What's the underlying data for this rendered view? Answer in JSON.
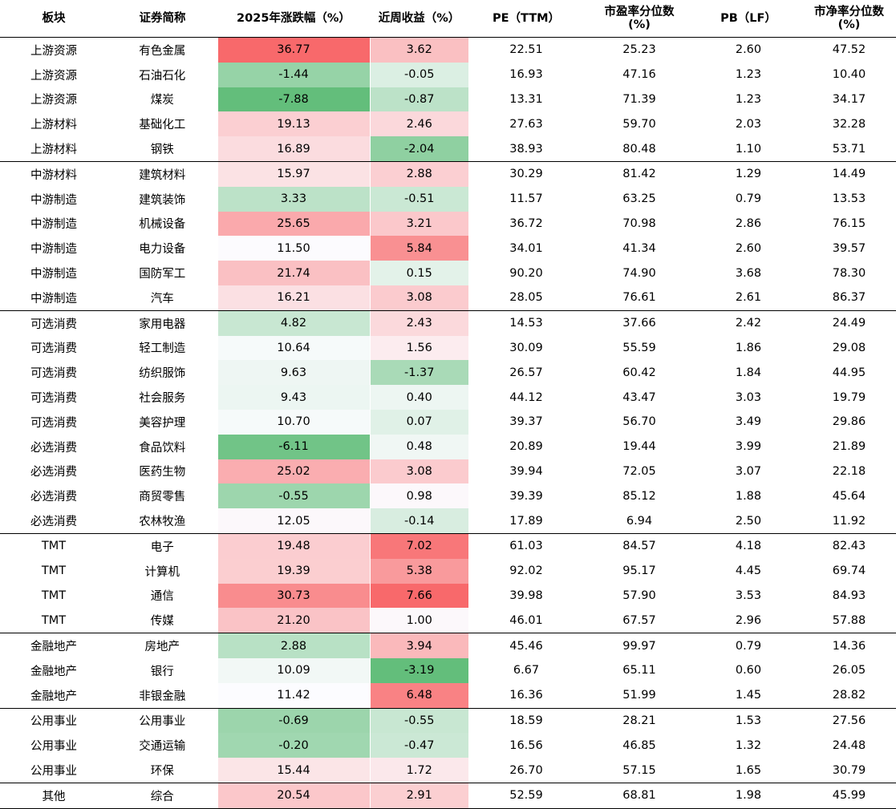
{
  "columns": [
    "板块",
    "证券简称",
    "2025年涨跌幅（%）",
    "近周收益（%）",
    "PE（TTM）",
    "市盈率分位数(%)",
    "PB（LF）",
    "市净率分位数(%)"
  ],
  "rows": [
    [
      "上游资源",
      "有色金属",
      "36.77",
      "3.62",
      "22.51",
      "25.23",
      "2.60",
      "47.52"
    ],
    [
      "上游资源",
      "石油石化",
      "-1.44",
      "-0.05",
      "16.93",
      "47.16",
      "1.23",
      "10.40"
    ],
    [
      "上游资源",
      "煤炭",
      "-7.88",
      "-0.87",
      "13.31",
      "71.39",
      "1.23",
      "34.17"
    ],
    [
      "上游材料",
      "基础化工",
      "19.13",
      "2.46",
      "27.63",
      "59.70",
      "2.03",
      "32.28"
    ],
    [
      "上游材料",
      "钢铁",
      "16.89",
      "-2.04",
      "38.93",
      "80.48",
      "1.10",
      "53.71"
    ],
    [
      "中游材料",
      "建筑材料",
      "15.97",
      "2.88",
      "30.29",
      "81.42",
      "1.29",
      "14.49"
    ],
    [
      "中游制造",
      "建筑装饰",
      "3.33",
      "-0.51",
      "11.57",
      "63.25",
      "0.79",
      "13.53"
    ],
    [
      "中游制造",
      "机械设备",
      "25.65",
      "3.21",
      "36.72",
      "70.98",
      "2.86",
      "76.15"
    ],
    [
      "中游制造",
      "电力设备",
      "11.50",
      "5.84",
      "34.01",
      "41.34",
      "2.60",
      "39.57"
    ],
    [
      "中游制造",
      "国防军工",
      "21.74",
      "0.15",
      "90.20",
      "74.90",
      "3.68",
      "78.30"
    ],
    [
      "中游制造",
      "汽车",
      "16.21",
      "3.08",
      "28.05",
      "76.61",
      "2.61",
      "86.37"
    ],
    [
      "可选消费",
      "家用电器",
      "4.82",
      "2.43",
      "14.53",
      "37.66",
      "2.42",
      "24.49"
    ],
    [
      "可选消费",
      "轻工制造",
      "10.64",
      "1.56",
      "30.09",
      "55.59",
      "1.86",
      "29.08"
    ],
    [
      "可选消费",
      "纺织服饰",
      "9.63",
      "-1.37",
      "26.57",
      "60.42",
      "1.84",
      "44.95"
    ],
    [
      "可选消费",
      "社会服务",
      "9.43",
      "0.40",
      "44.12",
      "43.47",
      "3.03",
      "19.79"
    ],
    [
      "可选消费",
      "美容护理",
      "10.70",
      "0.07",
      "39.37",
      "56.70",
      "3.49",
      "29.86"
    ],
    [
      "必选消费",
      "食品饮料",
      "-6.11",
      "0.48",
      "20.89",
      "19.44",
      "3.99",
      "21.89"
    ],
    [
      "必选消费",
      "医药生物",
      "25.02",
      "3.08",
      "39.94",
      "72.05",
      "3.07",
      "22.18"
    ],
    [
      "必选消费",
      "商贸零售",
      "-0.55",
      "0.98",
      "39.39",
      "85.12",
      "1.88",
      "45.64"
    ],
    [
      "必选消费",
      "农林牧渔",
      "12.05",
      "-0.14",
      "17.89",
      "6.94",
      "2.50",
      "11.92"
    ],
    [
      "TMT",
      "电子",
      "19.48",
      "7.02",
      "61.03",
      "84.57",
      "4.18",
      "82.43"
    ],
    [
      "TMT",
      "计算机",
      "19.39",
      "5.38",
      "92.02",
      "95.17",
      "4.45",
      "69.74"
    ],
    [
      "TMT",
      "通信",
      "30.73",
      "7.66",
      "39.98",
      "57.90",
      "3.53",
      "84.93"
    ],
    [
      "TMT",
      "传媒",
      "21.20",
      "1.00",
      "46.01",
      "67.57",
      "2.96",
      "57.88"
    ],
    [
      "金融地产",
      "房地产",
      "2.88",
      "3.94",
      "45.46",
      "99.97",
      "0.79",
      "14.36"
    ],
    [
      "金融地产",
      "银行",
      "10.09",
      "-3.19",
      "6.67",
      "65.11",
      "0.60",
      "26.05"
    ],
    [
      "金融地产",
      "非银金融",
      "11.42",
      "6.48",
      "16.36",
      "51.99",
      "1.45",
      "28.82"
    ],
    [
      "公用事业",
      "公用事业",
      "-0.69",
      "-0.55",
      "18.59",
      "28.21",
      "1.53",
      "27.56"
    ],
    [
      "公用事业",
      "交通运输",
      "-0.20",
      "-0.47",
      "16.56",
      "46.85",
      "1.32",
      "24.48"
    ],
    [
      "公用事业",
      "环保",
      "15.44",
      "1.72",
      "26.70",
      "57.15",
      "1.65",
      "30.79"
    ],
    [
      "其他",
      "综合",
      "20.54",
      "2.91",
      "52.59",
      "68.81",
      "1.98",
      "45.99"
    ]
  ],
  "group_end_rows": [
    4,
    10,
    19,
    23,
    26,
    29,
    30
  ],
  "heatmap": {
    "columns": [
      2,
      3
    ],
    "col2_mid": 11.4,
    "col3_mid": 0.8,
    "colors": {
      "high": "#f8696b",
      "mid": "#fcfcff",
      "low": "#63be7b"
    }
  }
}
